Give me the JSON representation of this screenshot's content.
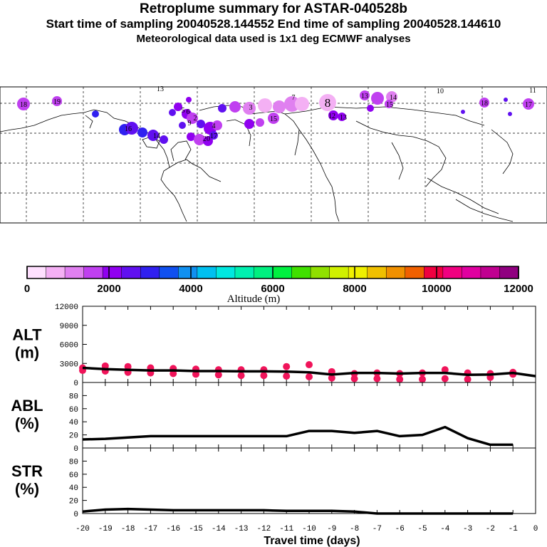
{
  "titles": {
    "line1": "Retroplume summary for ASTAR-040528b",
    "line2": "Start time of sampling 20040528.144552     End time of sampling 20040528.144610",
    "line3": "Meteorological data used is 1x1 deg ECMWF analyses"
  },
  "colorbar": {
    "colors": [
      "#ffe0ff",
      "#f4b0f4",
      "#e080f0",
      "#c040f0",
      "#9000f0",
      "#6010f0",
      "#3020f0",
      "#1050f0",
      "#1090f0",
      "#00c0f0",
      "#00e8e0",
      "#00f0b0",
      "#00f080",
      "#00f040",
      "#40e000",
      "#90e000",
      "#d0f000",
      "#f0f000",
      "#f0c000",
      "#f09000",
      "#f06000",
      "#f00040",
      "#f00080",
      "#e000a0",
      "#c00090",
      "#900080"
    ],
    "labels": [
      "0",
      "2000",
      "4000",
      "6000",
      "8000",
      "10000",
      "12000"
    ],
    "title": "Altitude (m)"
  },
  "map_labels": [
    "18",
    "19",
    "13",
    "13",
    "10",
    "14",
    "11",
    "18",
    "17",
    "15",
    "8",
    "7",
    "12",
    "13",
    "16",
    "15",
    "14",
    "17",
    "5",
    "6",
    "3",
    "9",
    "4",
    "2",
    "20"
  ],
  "chart_data": [
    {
      "type": "line",
      "ylabel": "ALT\n(m)",
      "ylim": [
        0,
        12000
      ],
      "yticks": [
        0,
        3000,
        6000,
        9000,
        12000
      ],
      "x": [
        -20,
        -19,
        -18,
        -17,
        -16,
        -15,
        -14,
        -13,
        -12,
        -11,
        -10,
        -9,
        -8,
        -7,
        -6,
        -5,
        -4,
        -3,
        -2,
        -1,
        0
      ],
      "values": [
        2300,
        2100,
        2000,
        1900,
        1900,
        1800,
        1800,
        1750,
        1750,
        1700,
        1600,
        1250,
        1500,
        1500,
        1400,
        1500,
        1500,
        1200,
        1250,
        1500,
        1000
      ],
      "scatter_color": "#f0145a",
      "scatter": [
        {
          "x": -20,
          "y": 2300
        },
        {
          "x": -20,
          "y": 1900
        },
        {
          "x": -19,
          "y": 2600
        },
        {
          "x": -19,
          "y": 1800
        },
        {
          "x": -18,
          "y": 2500
        },
        {
          "x": -18,
          "y": 1600
        },
        {
          "x": -17,
          "y": 2300
        },
        {
          "x": -17,
          "y": 1500
        },
        {
          "x": -16,
          "y": 2200
        },
        {
          "x": -16,
          "y": 1400
        },
        {
          "x": -15,
          "y": 2100
        },
        {
          "x": -15,
          "y": 1300
        },
        {
          "x": -14,
          "y": 2000
        },
        {
          "x": -14,
          "y": 1200
        },
        {
          "x": -13,
          "y": 2000
        },
        {
          "x": -13,
          "y": 1100
        },
        {
          "x": -12,
          "y": 2000
        },
        {
          "x": -12,
          "y": 1100
        },
        {
          "x": -11,
          "y": 2500
        },
        {
          "x": -11,
          "y": 1000
        },
        {
          "x": -10,
          "y": 2800
        },
        {
          "x": -10,
          "y": 900
        },
        {
          "x": -9,
          "y": 1700
        },
        {
          "x": -9,
          "y": 700
        },
        {
          "x": -8,
          "y": 1400
        },
        {
          "x": -8,
          "y": 600
        },
        {
          "x": -7,
          "y": 1500
        },
        {
          "x": -7,
          "y": 600
        },
        {
          "x": -6,
          "y": 1400
        },
        {
          "x": -6,
          "y": 500
        },
        {
          "x": -5,
          "y": 1500
        },
        {
          "x": -5,
          "y": 500
        },
        {
          "x": -4,
          "y": 2000
        },
        {
          "x": -4,
          "y": 600
        },
        {
          "x": -3,
          "y": 1500
        },
        {
          "x": -3,
          "y": 500
        },
        {
          "x": -2,
          "y": 1400
        },
        {
          "x": -2,
          "y": 800
        },
        {
          "x": -1,
          "y": 1600
        },
        {
          "x": -1,
          "y": 1300
        }
      ]
    },
    {
      "type": "line",
      "ylabel": "ABL\n(%)",
      "ylim": [
        0,
        100
      ],
      "yticks": [
        0,
        20,
        40,
        60,
        80
      ],
      "x": [
        -20,
        -19,
        -18,
        -17,
        -16,
        -15,
        -14,
        -13,
        -12,
        -11,
        -10,
        -9,
        -8,
        -7,
        -6,
        -5,
        -4,
        -3,
        -2,
        -1
      ],
      "values": [
        13,
        14,
        16,
        18,
        18,
        18,
        18,
        18,
        18,
        18,
        26,
        26,
        23,
        26,
        18,
        20,
        32,
        15,
        5,
        5
      ]
    },
    {
      "type": "line",
      "ylabel": "STR\n(%)",
      "ylim": [
        0,
        100
      ],
      "yticks": [
        0,
        20,
        40,
        60,
        80
      ],
      "x": [
        -20,
        -19,
        -18,
        -17,
        -16,
        -15,
        -14,
        -13,
        -12,
        -11,
        -10,
        -9,
        -8,
        -7,
        -6,
        -5,
        -4,
        -3,
        -2,
        -1
      ],
      "values": [
        3,
        6,
        7,
        6,
        5,
        5,
        5,
        5,
        5,
        4,
        4,
        4,
        3,
        0,
        0,
        0,
        0,
        0,
        0,
        0
      ]
    }
  ],
  "xaxis": {
    "ticks": [
      "-20",
      "-19",
      "-18",
      "-17",
      "-16",
      "-15",
      "-14",
      "-13",
      "-12",
      "-11",
      "-10",
      "-9",
      "-8",
      "-7",
      "-6",
      "-5",
      "-4",
      "-3",
      "-2",
      "-1",
      "0"
    ],
    "xlabel": "Travel time (days)"
  }
}
